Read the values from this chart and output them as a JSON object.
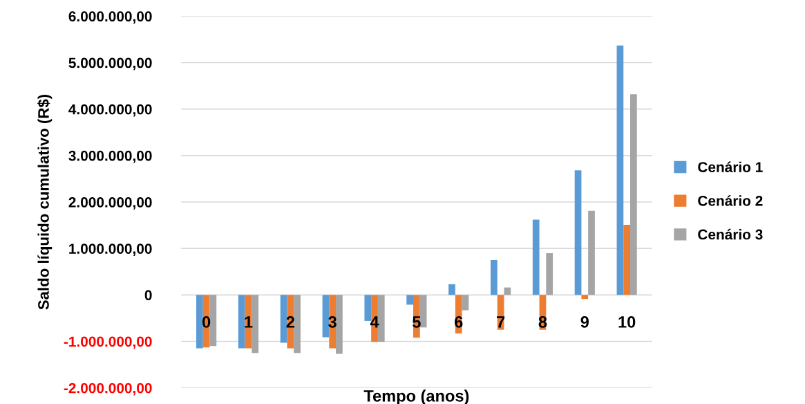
{
  "chart_data": {
    "type": "bar",
    "xlabel": "Tempo (anos)",
    "ylabel": "Saldo líquido cumulativo (R$)",
    "categories": [
      "0",
      "1",
      "2",
      "3",
      "4",
      "5",
      "6",
      "7",
      "8",
      "9",
      "10"
    ],
    "series": [
      {
        "name": "Cenário 1",
        "color": "#5b9bd5",
        "values": [
          -1150000,
          -1150000,
          -1030000,
          -910000,
          -560000,
          -210000,
          230000,
          750000,
          1620000,
          2680000,
          5370000
        ]
      },
      {
        "name": "Cenário 2",
        "color": "#ed7d31",
        "values": [
          -1130000,
          -1150000,
          -1150000,
          -1150000,
          -1010000,
          -920000,
          -830000,
          -750000,
          -750000,
          -90000,
          1510000
        ]
      },
      {
        "name": "Cenário 3",
        "color": "#a5a5a5",
        "values": [
          -1100000,
          -1250000,
          -1250000,
          -1270000,
          -1010000,
          -700000,
          -330000,
          160000,
          900000,
          1810000,
          4320000
        ]
      }
    ],
    "ylim": [
      -2000000,
      6000000
    ],
    "yticks": [
      {
        "value": -2000000,
        "label": "-2.000.000,00"
      },
      {
        "value": -1000000,
        "label": "-1.000.000,00"
      },
      0,
      {
        "value": 1000000,
        "label": "1.000.000,00"
      },
      {
        "value": 2000000,
        "label": "2.000.000,00"
      },
      {
        "value": 3000000,
        "label": "3.000.000,00"
      },
      {
        "value": 4000000,
        "label": "4.000.000,00"
      },
      {
        "value": 5000000,
        "label": "5.000.000,00"
      },
      {
        "value": 6000000,
        "label": "6.000.000,00"
      }
    ],
    "grid": "y",
    "legend": "right"
  }
}
